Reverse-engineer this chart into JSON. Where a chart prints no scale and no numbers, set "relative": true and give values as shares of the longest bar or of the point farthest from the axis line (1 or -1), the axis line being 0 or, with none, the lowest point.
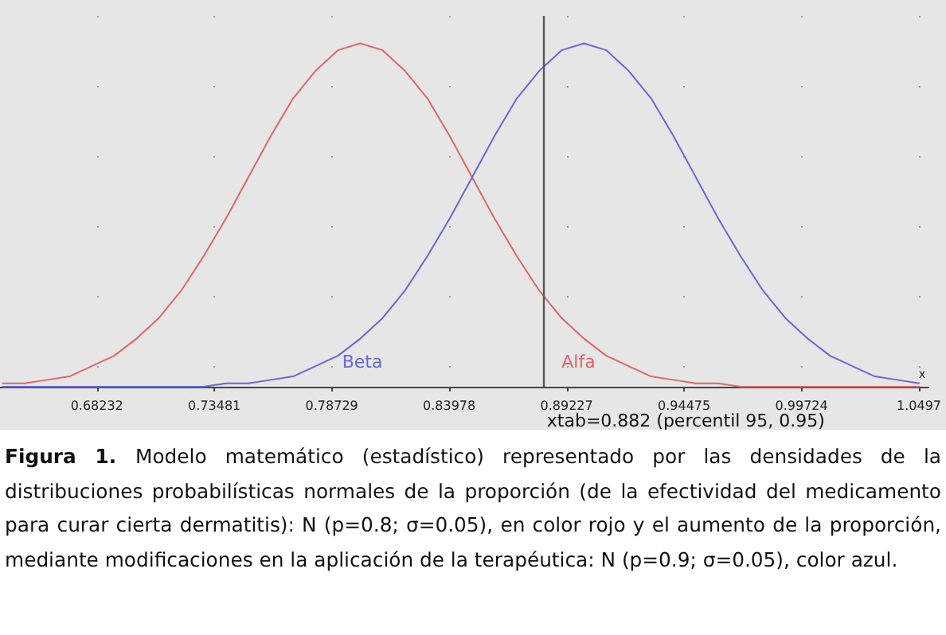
{
  "chart_data": {
    "type": "line",
    "relative": true,
    "xlabel": "x",
    "xlim": [
      0.639,
      1.054
    ],
    "xticks": [
      0.68232,
      0.73481,
      0.78729,
      0.83978,
      0.89227,
      0.94475,
      0.99724,
      1.0497
    ],
    "grid": "x",
    "marker": "none",
    "line_style": "solid",
    "legend": false,
    "x": [
      0.64,
      0.65,
      0.66,
      0.67,
      0.68,
      0.69,
      0.7,
      0.71,
      0.72,
      0.73,
      0.74,
      0.75,
      0.76,
      0.77,
      0.78,
      0.79,
      0.8,
      0.81,
      0.82,
      0.83,
      0.84,
      0.85,
      0.86,
      0.87,
      0.88,
      0.89,
      0.9,
      0.91,
      0.92,
      0.93,
      0.94,
      0.95,
      0.96,
      0.97,
      0.98,
      0.99,
      1.0,
      1.01,
      1.02,
      1.03,
      1.04,
      1.05
    ],
    "series": [
      {
        "name": "Alfa",
        "color": "#e06666",
        "values": [
          0.01,
          0.01,
          0.02,
          0.03,
          0.06,
          0.09,
          0.14,
          0.2,
          0.28,
          0.38,
          0.49,
          0.61,
          0.73,
          0.84,
          0.92,
          0.98,
          1,
          0.98,
          0.92,
          0.84,
          0.73,
          0.61,
          0.49,
          0.38,
          0.28,
          0.2,
          0.14,
          0.09,
          0.06,
          0.03,
          0.02,
          0.01,
          0.01,
          0,
          0,
          0,
          0,
          0,
          0,
          0,
          0,
          0
        ]
      },
      {
        "name": "Beta",
        "color": "#6666dd",
        "values": [
          0,
          0,
          0,
          0,
          0,
          0,
          0,
          0,
          0,
          0,
          0.01,
          0.01,
          0.02,
          0.03,
          0.06,
          0.09,
          0.14,
          0.2,
          0.28,
          0.38,
          0.49,
          0.61,
          0.73,
          0.84,
          0.92,
          0.98,
          1,
          0.98,
          0.92,
          0.84,
          0.73,
          0.61,
          0.49,
          0.38,
          0.28,
          0.2,
          0.14,
          0.09,
          0.06,
          0.03,
          0.02,
          0.01
        ]
      }
    ],
    "ref_lines": [
      {
        "axis": "x",
        "value": 0.882,
        "label": "xtab=0.882 (percentil 95, 0.95)",
        "color": "#555555"
      }
    ],
    "annotations": [
      "Figura 1.",
      "Modelo matemático (estadístico) representado por las densidades de la distribuciones probabilísticas normales de la proporción (de la efectividad del medicamento para curar cierta dermatitis): N (p=0.8; σ=0.05), en color rojo y el aumento de la proporción, mediante modificaciones en la aplicación de la terapéutica: N (p=0.9; σ=0.05), color azul."
    ]
  }
}
